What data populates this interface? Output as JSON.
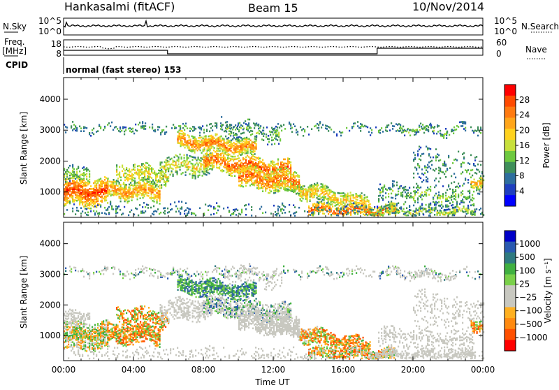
{
  "header": {
    "station": "Hankasalmi (fitACF)",
    "beam": "Beam 15",
    "date": "10/Nov/2014"
  },
  "noise_panel": {
    "left_label": "N.Sky",
    "right_label": "N.Search",
    "left_ticks": [
      "10^5",
      "10^0"
    ],
    "right_ticks": [
      "10^5",
      "10^0"
    ]
  },
  "freq_panel": {
    "left_label_1": "Freq.",
    "left_label_2": "[MHz]",
    "right_label": "Nave",
    "left_ticks": [
      "18",
      "8"
    ],
    "right_ticks": [
      "60",
      "0"
    ],
    "cpid_label": "CPID",
    "cpid_text": "normal (fast stereo) 153"
  },
  "colors": {
    "power_scale": [
      "#0000ff",
      "#1f3fbf",
      "#2e6e9e",
      "#3f8f5a",
      "#6ec93f",
      "#c8e03c",
      "#ffd21e",
      "#ffa51a",
      "#ff7a10",
      "#ff4a00",
      "#ff0000"
    ],
    "velocity_scale": [
      "#0000c8",
      "#2a5ab0",
      "#2f7a80",
      "#40b040",
      "#7ad04a",
      "#c8c8c0",
      "#c8c8c0",
      "#ffb020",
      "#ff8a10",
      "#ff5000",
      "#ff0000"
    ],
    "ground_scatter": "#c8c8c0"
  },
  "chart_data": [
    {
      "type": "heatmap",
      "parameter": "Power",
      "ylabel": "Slant Range [km]",
      "yticks": [
        1000,
        2000,
        3000,
        4000
      ],
      "ylim": [
        180,
        4700
      ],
      "xlim": [
        0,
        24
      ],
      "colorbar_label": "Power [dB]",
      "colorbar_ticks": [
        "4",
        "8",
        "12",
        "16",
        "20",
        "24",
        "28"
      ],
      "colorbar_range": [
        0,
        30
      ]
    },
    {
      "type": "heatmap",
      "parameter": "Velocity",
      "ylabel": "Slant Range [km]",
      "yticks": [
        1000,
        2000,
        3000,
        4000
      ],
      "ylim": [
        180,
        4700
      ],
      "xlim": [
        0,
        24
      ],
      "colorbar_label": "Velocity [m s⁻¹]",
      "colorbar_ticks": [
        "1000",
        "500",
        "100",
        "25",
        "−25",
        "−100",
        "−500",
        "−1000"
      ]
    }
  ],
  "x_axis": {
    "ticks": [
      "00:00",
      "04:00",
      "08:00",
      "12:00",
      "16:00",
      "20:00",
      "00:00"
    ],
    "label": "Time UT"
  }
}
